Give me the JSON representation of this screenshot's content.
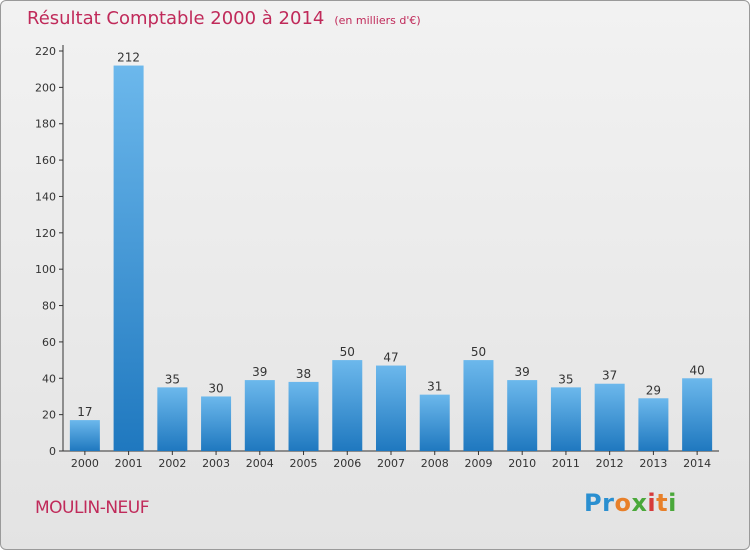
{
  "header": {
    "title": "Résultat Comptable 2000 à 2014",
    "subtitle": "(en milliers d'€)"
  },
  "footer": {
    "commune": "MOULIN-NEUF"
  },
  "logo": {
    "letters": [
      "P",
      "r",
      "o",
      "x",
      "i",
      "t",
      "i"
    ]
  },
  "colors": {
    "title": "#c02a5a",
    "bar_top": "#6cb8ec",
    "bar_bottom": "#1f78bf",
    "axis": "#333333"
  },
  "chart_data": {
    "type": "bar",
    "title": "Résultat Comptable 2000 à 2014",
    "subtitle": "(en milliers d'€)",
    "xlabel": "",
    "ylabel": "",
    "categories": [
      "2000",
      "2001",
      "2002",
      "2003",
      "2004",
      "2005",
      "2006",
      "2007",
      "2008",
      "2009",
      "2010",
      "2011",
      "2012",
      "2013",
      "2014"
    ],
    "values": [
      17,
      212,
      35,
      30,
      39,
      38,
      50,
      47,
      31,
      50,
      39,
      35,
      37,
      29,
      40
    ],
    "ylim": [
      0,
      220
    ],
    "yticks": [
      0,
      20,
      40,
      60,
      80,
      100,
      120,
      140,
      160,
      180,
      200,
      220
    ],
    "grid": false,
    "legend": "none"
  }
}
